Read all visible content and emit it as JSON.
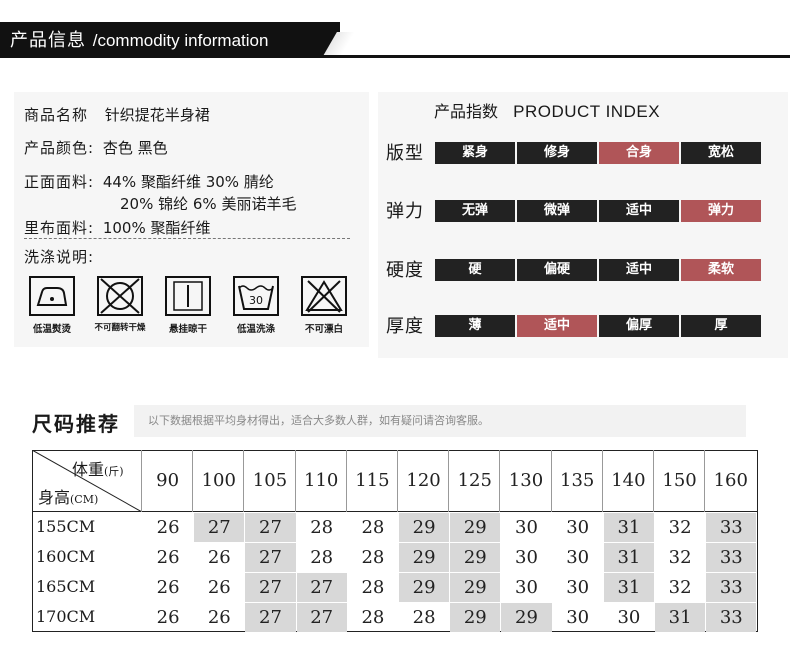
{
  "header": {
    "title_cn": "产品信息",
    "title_en": "/commodity information"
  },
  "info": {
    "name_label": "商品名称",
    "name_value": "针织提花半身裙",
    "color_label": "产品颜色:",
    "color_value": "杏色 黑色",
    "front_label": "正面面料:",
    "front_value_1": "44% 聚酯纤维 30% 腈纶",
    "front_value_2": "20% 锦纶   6% 美丽诺羊毛",
    "lining_label": "里布面料:",
    "lining_value": "100% 聚酯纤维",
    "wash_label": "洗涤说明:",
    "wash_items": [
      {
        "icon": "low-temp-iron-icon",
        "label": "低温熨烫"
      },
      {
        "icon": "no-tumble-dry-icon",
        "label": "不可翻转干燥"
      },
      {
        "icon": "hang-dry-icon",
        "label": "悬挂晾干"
      },
      {
        "icon": "low-temp-wash-icon",
        "label": "低温洗涤",
        "temp": "30"
      },
      {
        "icon": "no-bleach-icon",
        "label": "不可漂白"
      }
    ]
  },
  "index": {
    "title_cn": "产品指数",
    "title_en": "PRODUCT  INDEX",
    "accent_color": "#b05558",
    "rows": [
      {
        "label": "版型",
        "options": [
          "紧身",
          "修身",
          "合身",
          "宽松"
        ],
        "selected": 2
      },
      {
        "label": "弹力",
        "options": [
          "无弹",
          "微弹",
          "适中",
          "弹力"
        ],
        "selected": 3
      },
      {
        "label": "硬度",
        "options": [
          "硬",
          "偏硬",
          "适中",
          "柔软"
        ],
        "selected": 3
      },
      {
        "label": "厚度",
        "options": [
          "薄",
          "适中",
          "偏厚",
          "厚"
        ],
        "selected": 1
      }
    ]
  },
  "size": {
    "title": "尺码推荐",
    "note": "以下数据根据平均身材得出，适合大多数人群，如有疑问请咨询客服。",
    "weight_label": "体重",
    "weight_unit": "(斤)",
    "height_label": "身高",
    "height_unit": "(CM)",
    "weights": [
      "90",
      "100",
      "105",
      "110",
      "115",
      "120",
      "125",
      "130",
      "135",
      "140",
      "150",
      "160"
    ],
    "rows": [
      {
        "height": "155CM",
        "values": [
          "26",
          "27",
          "27",
          "28",
          "28",
          "29",
          "29",
          "30",
          "30",
          "31",
          "32",
          "33"
        ],
        "shaded": [
          1,
          2,
          5,
          6,
          9,
          11
        ]
      },
      {
        "height": "160CM",
        "values": [
          "26",
          "26",
          "27",
          "28",
          "28",
          "29",
          "29",
          "30",
          "30",
          "31",
          "32",
          "33"
        ],
        "shaded": [
          2,
          5,
          6,
          9,
          11
        ]
      },
      {
        "height": "165CM",
        "values": [
          "26",
          "26",
          "27",
          "27",
          "28",
          "29",
          "29",
          "30",
          "30",
          "31",
          "32",
          "33"
        ],
        "shaded": [
          2,
          3,
          5,
          6,
          9,
          11
        ]
      },
      {
        "height": "170CM",
        "values": [
          "26",
          "26",
          "27",
          "27",
          "28",
          "28",
          "29",
          "29",
          "30",
          "30",
          "31",
          "33"
        ],
        "shaded": [
          2,
          3,
          6,
          7,
          10,
          11
        ]
      }
    ]
  }
}
